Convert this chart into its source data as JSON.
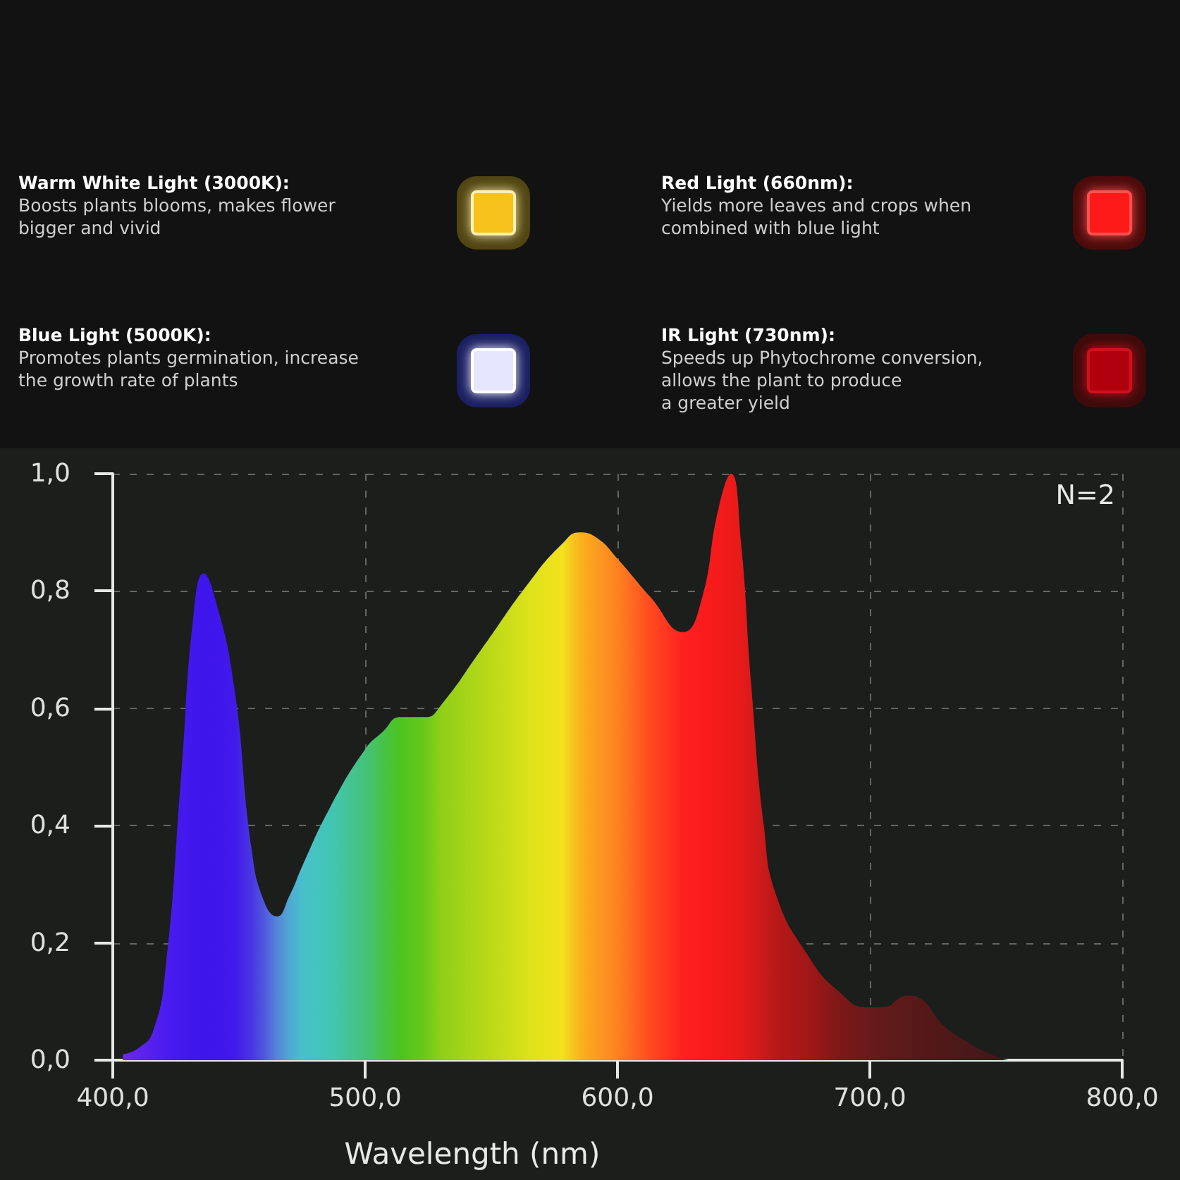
{
  "chart_data": [
    {
      "type": "other",
      "annotations": [
        "Warm White Light (3000K):",
        "Boosts plants blooms, makes flower\nbigger and vivid",
        "Red Light (660nm):",
        "Yields more leaves and crops when\ncombined with blue light",
        "Blue Light (5000K):",
        "Promotes plants germination, increase\nthe growth rate of plants",
        "IR Light (730nm):",
        "Speeds up Phytochrome conversion,\nallows the plant to produce\na greater yield"
      ]
    },
    {
      "type": "area",
      "xlabel": "Wavelength (nm)",
      "annotations": [
        "N=2"
      ],
      "x": [
        404,
        410,
        416,
        421,
        427,
        432,
        436,
        441,
        448,
        455,
        460,
        465,
        470,
        475,
        486,
        500,
        507,
        514,
        524,
        530,
        546,
        565,
        578,
        585,
        592,
        600,
        613,
        626,
        633,
        640,
        645,
        649,
        653,
        658,
        663,
        676,
        687,
        699,
        705,
        715,
        720,
        729,
        739,
        748,
        755
      ],
      "values": [
        0.01,
        0.02,
        0.05,
        0.16,
        0.48,
        0.76,
        0.83,
        0.78,
        0.64,
        0.36,
        0.27,
        0.245,
        0.28,
        0.33,
        0.43,
        0.53,
        0.56,
        0.585,
        0.585,
        0.605,
        0.7,
        0.815,
        0.88,
        0.9,
        0.89,
        0.855,
        0.79,
        0.73,
        0.78,
        0.94,
        1.0,
        0.88,
        0.64,
        0.4,
        0.28,
        0.175,
        0.12,
        0.09,
        0.09,
        0.11,
        0.105,
        0.06,
        0.03,
        0.01,
        0.0
      ],
      "colors": [
        "#6b2ae6",
        "#5e24ea",
        "#5420ee",
        "#4a1cf0",
        "#4419ee",
        "#4017ec",
        "#3e16ec",
        "#3f17ec",
        "#4119ea",
        "#4a36e2",
        "#5058de",
        "#5585d8",
        "#4fa8d2",
        "#48c0cc",
        "#42c6b4",
        "#45c27a",
        "#47c24a",
        "#4cc41e",
        "#6cc81a",
        "#8ecf18",
        "#b3d718",
        "#dce21a",
        "#f2e21c",
        "#f8b41c",
        "#fb9a20",
        "#fd8220",
        "#ff4a20",
        "#ff2020",
        "#fb1c1c",
        "#f41a1a",
        "#ee1a1a",
        "#e61a1a",
        "#da1a1a",
        "#c81a1a",
        "#b81818",
        "#a01818",
        "#801818",
        "#6a1a1a",
        "#621a1a",
        "#5a1a1a",
        "#561818",
        "#501818",
        "#4a1818",
        "#461616",
        "#441616"
      ],
      "xlim": [
        400,
        800
      ],
      "ylim": [
        0,
        1
      ],
      "xticks": [
        {
          "value": 400,
          "label": "400,0"
        },
        {
          "value": 500,
          "label": "500,0"
        },
        {
          "value": 600,
          "label": "600,0"
        },
        {
          "value": 700,
          "label": "700,0"
        },
        {
          "value": 800,
          "label": "800,0"
        }
      ],
      "yticks": [
        {
          "value": 0,
          "label": "0,0"
        },
        {
          "value": 0.2,
          "label": "0,2"
        },
        {
          "value": 0.4,
          "label": "0,4"
        },
        {
          "value": 0.6,
          "label": "0,6"
        },
        {
          "value": 0.8,
          "label": "0,8"
        },
        {
          "value": 1,
          "label": "1,0"
        }
      ],
      "grid": true,
      "marker": "none"
    }
  ]
}
